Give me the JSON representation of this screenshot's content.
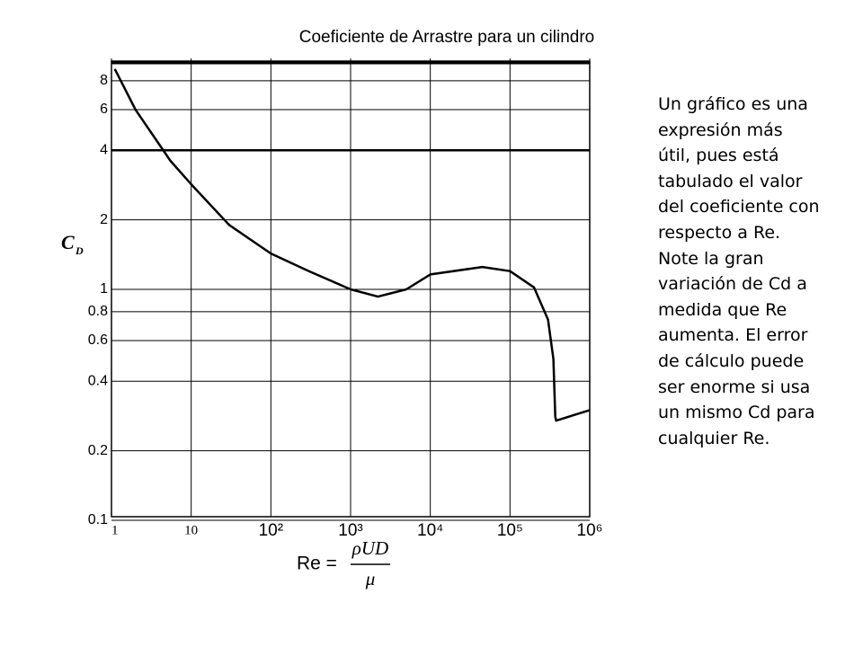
{
  "chart_data": {
    "type": "line",
    "title": "Coeficiente de Arrastre para un cilindro",
    "ylabel": {
      "symbol": "C",
      "subscript": "D"
    },
    "xlabel": {
      "lhs": "Re =",
      "numerator": "ρUD",
      "denominator": "μ"
    },
    "xlog": true,
    "ylog": true,
    "grid": true,
    "xlim": [
      1,
      1000000
    ],
    "ylim": [
      0.1,
      10
    ],
    "xticks": [
      1,
      10,
      {
        "value": 100,
        "label": "10²"
      },
      {
        "value": 1000,
        "label": "10³"
      },
      {
        "value": 10000,
        "label": "10⁴"
      },
      {
        "value": 100000,
        "label": "10⁵"
      },
      {
        "value": 1000000,
        "label": "10⁶"
      }
    ],
    "yticks": [
      0.1,
      0.2,
      0.4,
      0.6,
      0.8,
      1,
      2,
      4,
      6,
      8
    ],
    "series": [
      {
        "color": "#000000",
        "x": [
          1.1,
          2,
          5.5,
          10,
          30,
          100,
          300,
          1000,
          2200,
          5000,
          10000,
          45000,
          100000,
          200000,
          300000,
          350000,
          370000,
          380000,
          1000000
        ],
        "values": [
          9,
          6,
          3.6,
          2.85,
          1.9,
          1.43,
          1.2,
          1.0,
          0.93,
          1.0,
          1.16,
          1.25,
          1.2,
          1.02,
          0.74,
          0.5,
          0.28,
          0.27,
          0.3
        ]
      }
    ]
  },
  "side_text": "Un gráfico es una expresión más útil, pues está tabulado el valor del coeficiente con respecto a Re. Note  la gran variación de Cd a medida que Re aumenta. El error de cálculo puede ser enorme si usa un mismo Cd para cualquier Re."
}
